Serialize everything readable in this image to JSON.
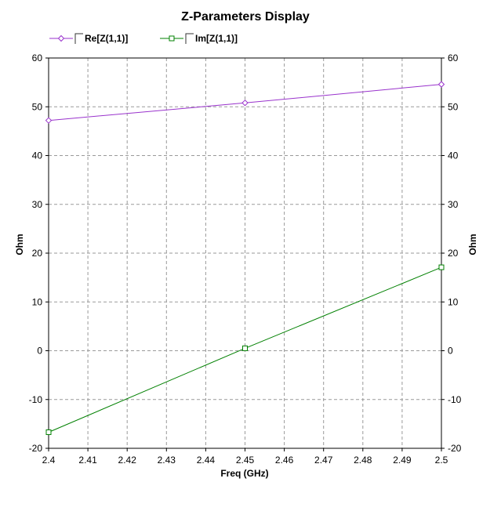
{
  "chart_data": {
    "type": "line",
    "title": "Z-Parameters Display",
    "xlabel": "Freq (GHz)",
    "ylabel_left": "Ohm",
    "ylabel_right": "Ohm",
    "xlim": [
      2.4,
      2.5
    ],
    "ylim": [
      -20,
      60
    ],
    "xticks": [
      "2.4",
      "2.41",
      "2.42",
      "2.43",
      "2.44",
      "2.45",
      "2.46",
      "2.47",
      "2.48",
      "2.49",
      "2.5"
    ],
    "yticks": [
      "60",
      "50",
      "40",
      "30",
      "20",
      "10",
      "0",
      "-10",
      "-20"
    ],
    "grid": true,
    "legend_position": "top-left",
    "series": [
      {
        "name": "Re[Z(1,1)]",
        "color": "#9932cc",
        "marker": "diamond",
        "x": [
          2.4,
          2.45,
          2.5
        ],
        "y": [
          47.2,
          50.8,
          54.6
        ]
      },
      {
        "name": "Im[Z(1,1)]",
        "color": "#008000",
        "marker": "square",
        "x": [
          2.4,
          2.45,
          2.5
        ],
        "y": [
          -16.7,
          0.5,
          17.1
        ]
      }
    ]
  }
}
